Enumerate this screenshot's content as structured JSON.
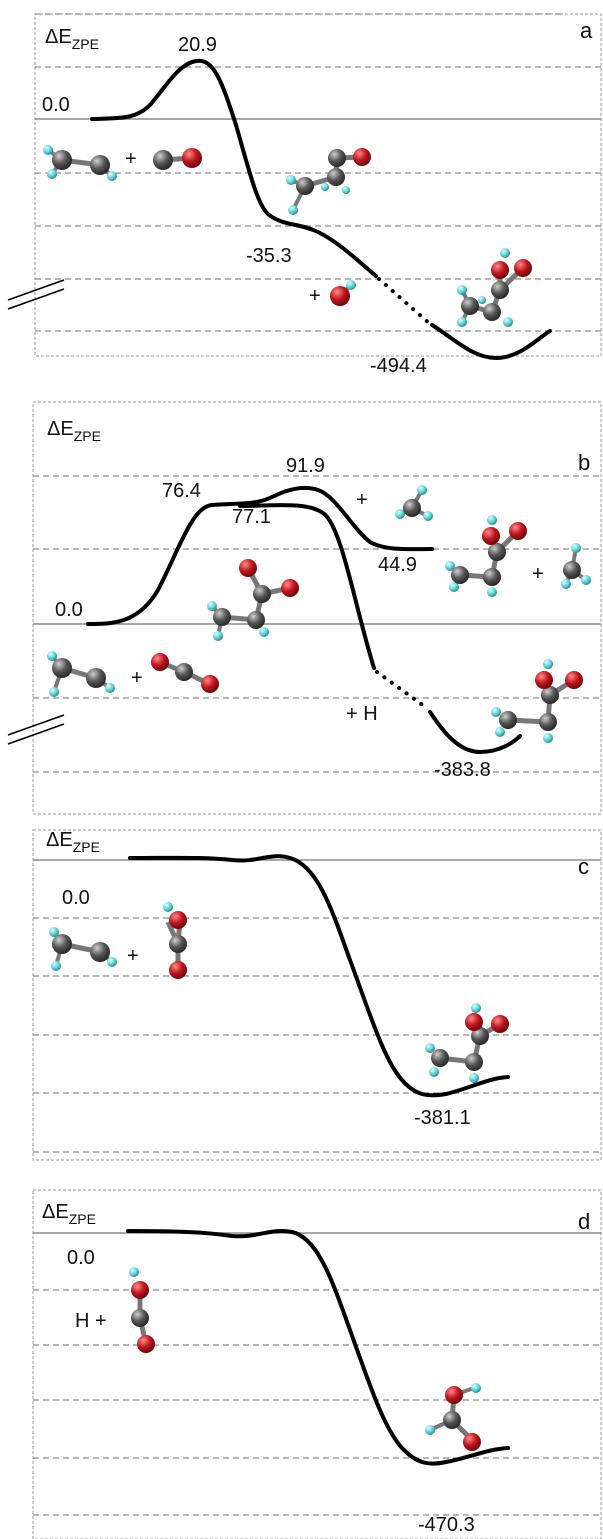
{
  "figure": {
    "y_axis_label": "ΔE",
    "y_axis_subscript": "ZPE",
    "panels": [
      {
        "id": "a",
        "energies": [
          "0.0",
          "20.9",
          "-35.3",
          "-494.4"
        ],
        "species_labels": [
          "+",
          "+"
        ]
      },
      {
        "id": "b",
        "energies": [
          "0.0",
          "76.4",
          "91.9",
          "77.1",
          "44.9",
          "-383.8"
        ],
        "species_labels": [
          "+",
          "+",
          "+",
          "+ H"
        ]
      },
      {
        "id": "c",
        "energies": [
          "0.0",
          "-381.1"
        ],
        "species_labels": [
          "+"
        ]
      },
      {
        "id": "d",
        "energies": [
          "0.0",
          "-470.3"
        ],
        "species_labels": [
          "H +"
        ]
      }
    ]
  },
  "colors": {
    "carbon": "#555555",
    "oxygen": "#c0141c",
    "hydrogen": "#5ed3d7",
    "curve": "#000000",
    "grid": "#8c8c8c"
  }
}
